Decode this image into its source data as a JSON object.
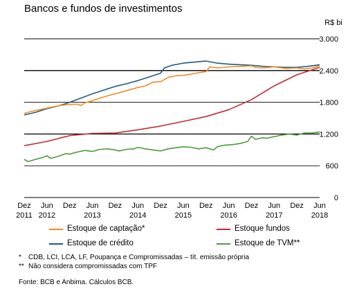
{
  "title": "Bancos e fundos de investimentos",
  "chart_data": {
    "type": "line",
    "title": "Bancos e fundos de investimentos",
    "unit": "R$ bi",
    "ylim": [
      0,
      3000
    ],
    "yticks": [
      0,
      600,
      1200,
      1800,
      2400,
      3000
    ],
    "ytick_labels": [
      "0",
      "600",
      "1.200",
      "1.800",
      "2.400",
      "3.000"
    ],
    "x_period": [
      "2011-12",
      "2018-06"
    ],
    "xticks": [
      {
        "date": "2011-12",
        "line1": "Dez",
        "line2": "2011"
      },
      {
        "date": "2012-06",
        "line1": "Jun",
        "line2": "2012"
      },
      {
        "date": "2012-12",
        "line1": "Dez",
        "line2": ""
      },
      {
        "date": "2013-06",
        "line1": "Jun",
        "line2": "2013"
      },
      {
        "date": "2013-12",
        "line1": "Dez",
        "line2": ""
      },
      {
        "date": "2014-06",
        "line1": "Jun",
        "line2": "2014"
      },
      {
        "date": "2014-12",
        "line1": "Dez",
        "line2": ""
      },
      {
        "date": "2015-06",
        "line1": "Jun",
        "line2": "2015"
      },
      {
        "date": "2015-12",
        "line1": "Dez",
        "line2": ""
      },
      {
        "date": "2016-06",
        "line1": "Jun",
        "line2": "2016"
      },
      {
        "date": "2016-12",
        "line1": "Dez",
        "line2": ""
      },
      {
        "date": "2017-06",
        "line1": "Jun",
        "line2": "2017"
      },
      {
        "date": "2017-12",
        "line1": "Dez",
        "line2": ""
      },
      {
        "date": "2018-06",
        "line1": "Jun",
        "line2": "2018"
      }
    ],
    "grid": "horizontal",
    "series": [
      {
        "name": "Estoque de captação*",
        "color": "#f08c1e",
        "points": [
          [
            "2011-12",
            1590
          ],
          [
            "2012-02",
            1630
          ],
          [
            "2012-04",
            1660
          ],
          [
            "2012-06",
            1690
          ],
          [
            "2012-08",
            1720
          ],
          [
            "2012-10",
            1745
          ],
          [
            "2012-12",
            1760
          ],
          [
            "2013-02",
            1765
          ],
          [
            "2013-03",
            1740
          ],
          [
            "2013-04",
            1790
          ],
          [
            "2013-06",
            1830
          ],
          [
            "2013-08",
            1880
          ],
          [
            "2013-10",
            1920
          ],
          [
            "2013-12",
            1960
          ],
          [
            "2014-02",
            2000
          ],
          [
            "2014-04",
            2040
          ],
          [
            "2014-06",
            2080
          ],
          [
            "2014-08",
            2110
          ],
          [
            "2014-10",
            2180
          ],
          [
            "2014-12",
            2190
          ],
          [
            "2015-02",
            2270
          ],
          [
            "2015-04",
            2300
          ],
          [
            "2015-06",
            2310
          ],
          [
            "2015-08",
            2330
          ],
          [
            "2015-10",
            2360
          ],
          [
            "2015-12",
            2380
          ],
          [
            "2016-01",
            2470
          ],
          [
            "2016-03",
            2450
          ],
          [
            "2016-06",
            2470
          ],
          [
            "2016-09",
            2480
          ],
          [
            "2016-12",
            2490
          ],
          [
            "2017-01",
            2460
          ],
          [
            "2017-03",
            2450
          ],
          [
            "2017-06",
            2470
          ],
          [
            "2017-09",
            2440
          ],
          [
            "2017-12",
            2450
          ],
          [
            "2018-02",
            2430
          ],
          [
            "2018-04",
            2450
          ],
          [
            "2018-06",
            2490
          ]
        ]
      },
      {
        "name": "Estoque de crédito",
        "color": "#1f5a82",
        "points": [
          [
            "2011-12",
            1560
          ],
          [
            "2012-03",
            1610
          ],
          [
            "2012-06",
            1680
          ],
          [
            "2012-09",
            1730
          ],
          [
            "2012-12",
            1800
          ],
          [
            "2013-03",
            1880
          ],
          [
            "2013-06",
            1960
          ],
          [
            "2013-09",
            2030
          ],
          [
            "2013-12",
            2100
          ],
          [
            "2014-03",
            2150
          ],
          [
            "2014-06",
            2210
          ],
          [
            "2014-09",
            2280
          ],
          [
            "2014-12",
            2350
          ],
          [
            "2015-01",
            2450
          ],
          [
            "2015-03",
            2500
          ],
          [
            "2015-06",
            2540
          ],
          [
            "2015-09",
            2560
          ],
          [
            "2015-12",
            2580
          ],
          [
            "2016-03",
            2540
          ],
          [
            "2016-06",
            2520
          ],
          [
            "2016-09",
            2510
          ],
          [
            "2016-12",
            2500
          ],
          [
            "2017-03",
            2480
          ],
          [
            "2017-06",
            2470
          ],
          [
            "2017-09",
            2460
          ],
          [
            "2017-12",
            2460
          ],
          [
            "2018-03",
            2480
          ],
          [
            "2018-06",
            2510
          ]
        ]
      },
      {
        "name": "Estoque fundos",
        "color": "#be2d37",
        "points": [
          [
            "2011-12",
            980
          ],
          [
            "2012-06",
            1060
          ],
          [
            "2012-12",
            1170
          ],
          [
            "2013-06",
            1210
          ],
          [
            "2013-12",
            1220
          ],
          [
            "2014-06",
            1280
          ],
          [
            "2014-12",
            1350
          ],
          [
            "2015-06",
            1440
          ],
          [
            "2015-12",
            1530
          ],
          [
            "2016-06",
            1660
          ],
          [
            "2016-12",
            1850
          ],
          [
            "2017-06",
            2110
          ],
          [
            "2017-12",
            2320
          ],
          [
            "2018-06",
            2460
          ]
        ]
      },
      {
        "name": "Estoque de TVM**",
        "color": "#4a9a3c",
        "points": [
          [
            "2011-12",
            720
          ],
          [
            "2012-01",
            680
          ],
          [
            "2012-03",
            720
          ],
          [
            "2012-05",
            760
          ],
          [
            "2012-06",
            790
          ],
          [
            "2012-07",
            740
          ],
          [
            "2012-09",
            780
          ],
          [
            "2012-11",
            830
          ],
          [
            "2012-12",
            820
          ],
          [
            "2013-02",
            860
          ],
          [
            "2013-04",
            890
          ],
          [
            "2013-06",
            870
          ],
          [
            "2013-08",
            910
          ],
          [
            "2013-10",
            920
          ],
          [
            "2013-12",
            900
          ],
          [
            "2014-01",
            880
          ],
          [
            "2014-03",
            910
          ],
          [
            "2014-05",
            920
          ],
          [
            "2014-06",
            950
          ],
          [
            "2014-08",
            920
          ],
          [
            "2014-10",
            900
          ],
          [
            "2014-12",
            880
          ],
          [
            "2015-02",
            920
          ],
          [
            "2015-04",
            940
          ],
          [
            "2015-06",
            960
          ],
          [
            "2015-08",
            950
          ],
          [
            "2015-10",
            920
          ],
          [
            "2015-12",
            940
          ],
          [
            "2016-02",
            900
          ],
          [
            "2016-03",
            960
          ],
          [
            "2016-05",
            990
          ],
          [
            "2016-07",
            1000
          ],
          [
            "2016-09",
            1020
          ],
          [
            "2016-11",
            1060
          ],
          [
            "2016-12",
            1160
          ],
          [
            "2017-01",
            1100
          ],
          [
            "2017-03",
            1130
          ],
          [
            "2017-04",
            1120
          ],
          [
            "2017-06",
            1150
          ],
          [
            "2017-08",
            1180
          ],
          [
            "2017-10",
            1200
          ],
          [
            "2017-12",
            1180
          ],
          [
            "2018-02",
            1220
          ],
          [
            "2018-04",
            1220
          ],
          [
            "2018-06",
            1240
          ]
        ]
      }
    ]
  },
  "legend": [
    {
      "key": "captacao",
      "label": "Estoque de captação*",
      "color": "#f08c1e"
    },
    {
      "key": "fundos",
      "label": "Estoque fundos",
      "color": "#be2d37"
    },
    {
      "key": "credito",
      "label": "Estoque de crédito",
      "color": "#1f5a82"
    },
    {
      "key": "tvm",
      "label": "Estoque de TVM**",
      "color": "#4a9a3c"
    }
  ],
  "notes": [
    {
      "marker": "*",
      "text": "CDB, LCI, LCA, LF, Poupança e Compromissadas – tít. emissão própria"
    },
    {
      "marker": "**",
      "text": "Não considera compromissadas com TPF"
    }
  ],
  "source": "Fonte: BCB e Anbima. Cálculos BCB."
}
